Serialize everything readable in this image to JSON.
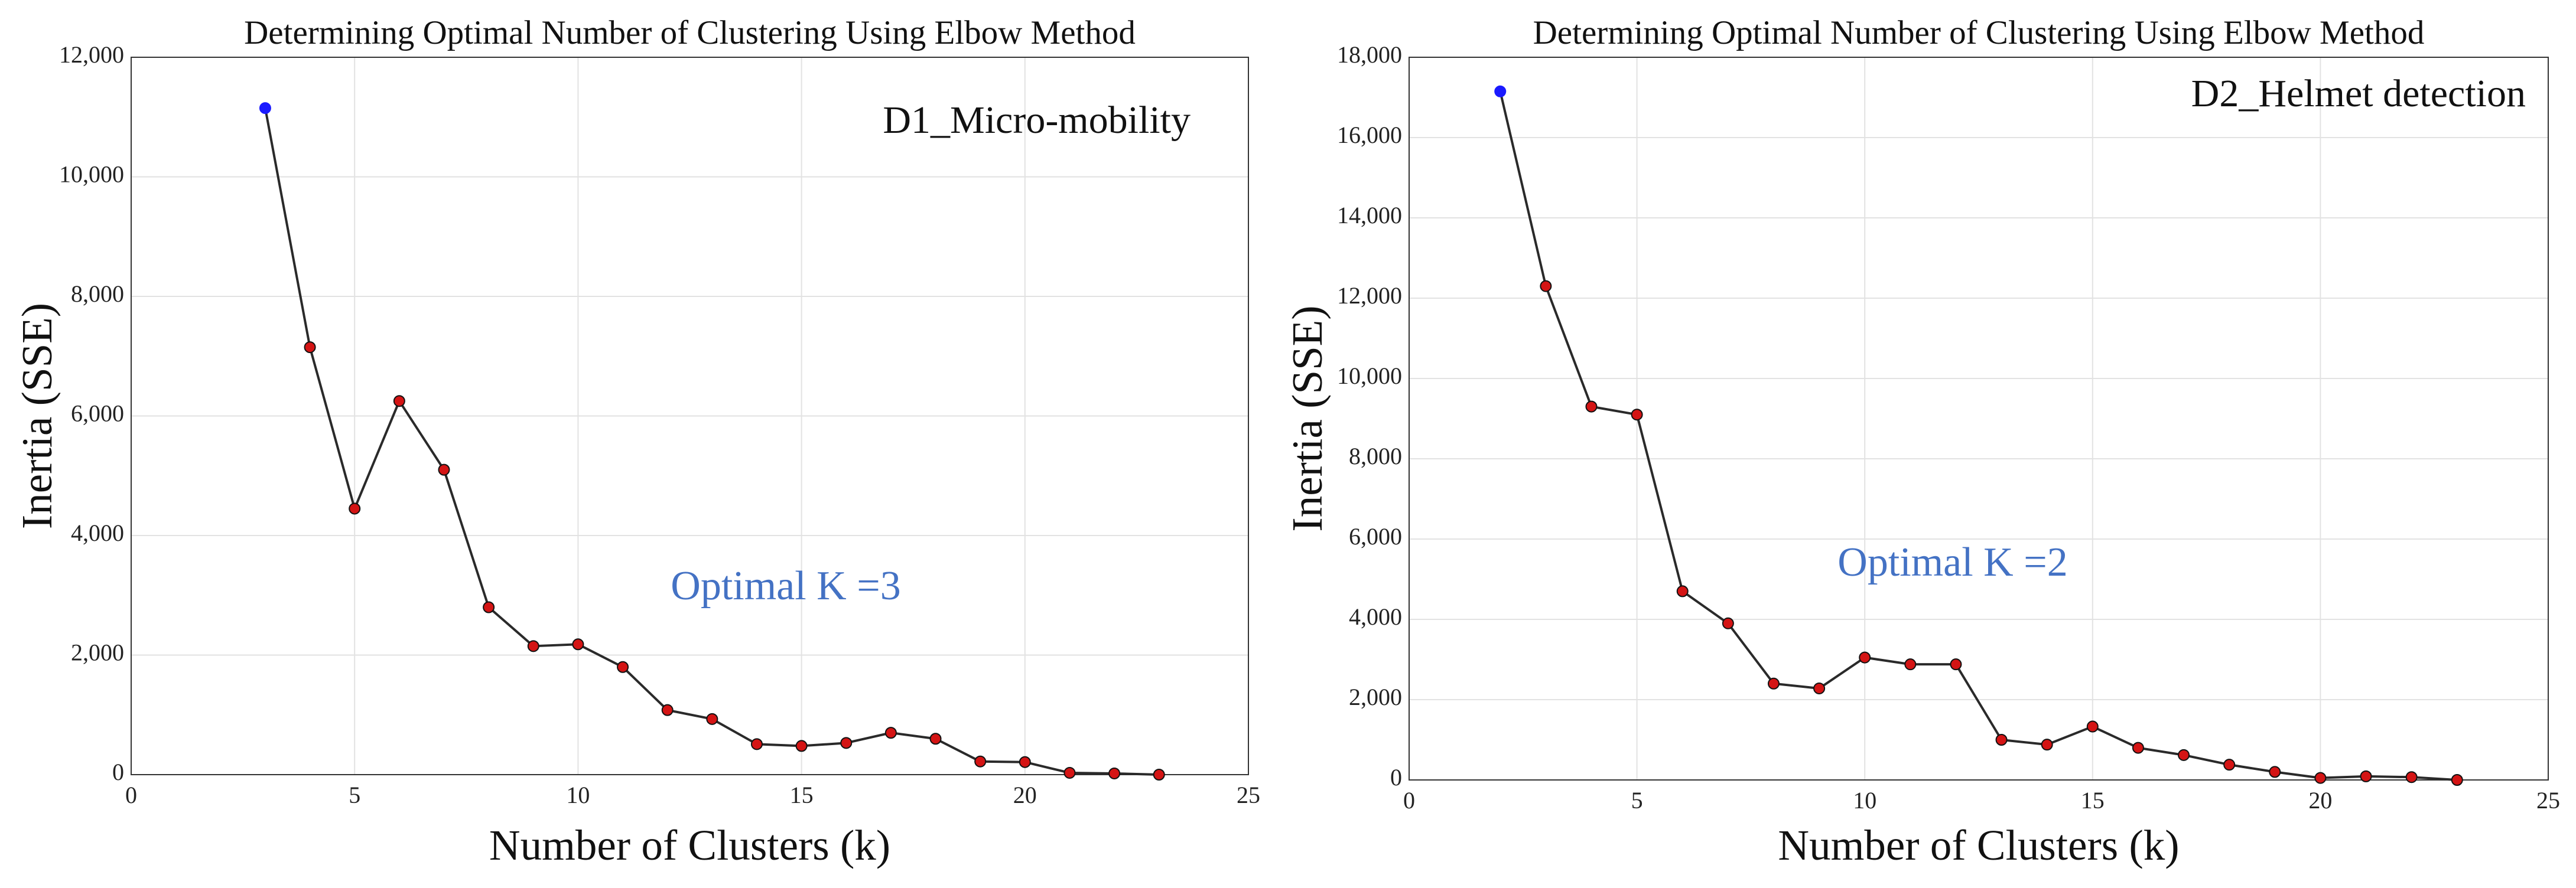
{
  "chart_data": [
    {
      "type": "line",
      "title": "Determining Optimal Number of Clustering Using Elbow Method",
      "xlabel": "Number of Clusters (k)",
      "ylabel": "Inertia (SSE)",
      "xlim": [
        0,
        25
      ],
      "ylim": [
        0,
        12000
      ],
      "xticks": [
        0,
        5,
        10,
        15,
        20,
        25
      ],
      "yticks": [
        0,
        2000,
        4000,
        6000,
        8000,
        10000,
        12000
      ],
      "xtick_labels": [
        "0",
        "5",
        "10",
        "15",
        "20",
        "25"
      ],
      "ytick_labels": [
        "0",
        "2,000",
        "4,000",
        "6,000",
        "8,000",
        "10,000",
        "12,000"
      ],
      "grid": true,
      "dataset_label": "D1_Micro-mobility",
      "annotation": "Optimal K =3",
      "colors": {
        "first_point": "#1a1aff",
        "points": "#d41414",
        "line": "#2a2a2a",
        "annotation": "#4472c4"
      },
      "series": [
        {
          "name": "Inertia",
          "x": [
            3,
            4,
            5,
            6,
            7,
            8,
            9,
            10,
            11,
            12,
            13,
            14,
            15,
            16,
            17,
            18,
            19,
            20,
            21,
            22,
            23
          ],
          "values": [
            11150,
            7150,
            4450,
            6250,
            5100,
            2800,
            2150,
            2180,
            1800,
            1080,
            930,
            510,
            480,
            530,
            700,
            600,
            220,
            210,
            30,
            20,
            0
          ]
        }
      ]
    },
    {
      "type": "line",
      "title": "Determining Optimal Number of Clustering Using Elbow Method",
      "xlabel": "Number of Clusters (k)",
      "ylabel": "Inertia (SSE)",
      "xlim": [
        0,
        25
      ],
      "ylim": [
        0,
        18000
      ],
      "xticks": [
        0,
        5,
        10,
        15,
        20,
        25
      ],
      "yticks": [
        0,
        2000,
        4000,
        6000,
        8000,
        10000,
        12000,
        14000,
        16000,
        18000
      ],
      "xtick_labels": [
        "0",
        "5",
        "10",
        "15",
        "20",
        "25"
      ],
      "ytick_labels": [
        "0",
        "2,000",
        "4,000",
        "6,000",
        "8,000",
        "10,000",
        "12,000",
        "14,000",
        "16,000",
        "18,000"
      ],
      "grid": true,
      "dataset_label": "D2_Helmet detection",
      "annotation": "Optimal K =2",
      "colors": {
        "first_point": "#1a1aff",
        "points": "#d41414",
        "line": "#2a2a2a",
        "annotation": "#4472c4"
      },
      "series": [
        {
          "name": "Inertia",
          "x": [
            2,
            3,
            4,
            5,
            6,
            7,
            8,
            9,
            10,
            11,
            12,
            13,
            14,
            15,
            16,
            17,
            18,
            19,
            20,
            21,
            22,
            23
          ],
          "values": [
            17150,
            12300,
            9300,
            9100,
            4700,
            3900,
            2400,
            2280,
            3050,
            2880,
            2880,
            1000,
            880,
            1330,
            800,
            620,
            380,
            200,
            50,
            90,
            70,
            0
          ]
        }
      ]
    }
  ]
}
